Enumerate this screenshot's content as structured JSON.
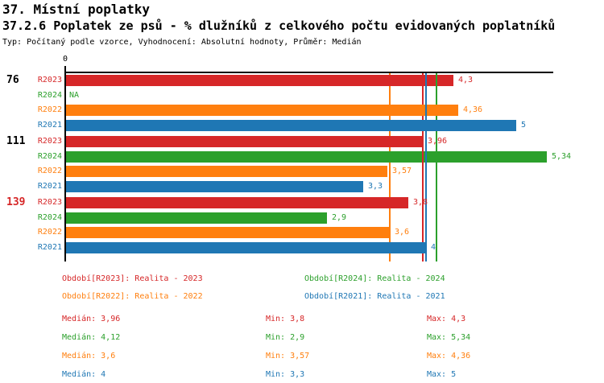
{
  "header": {
    "title": "37. Místní poplatky",
    "subtitle": "37.2.6 Poplatek ze psů - % dlužníků z celkového počtu evidovaných poplatníků",
    "meta": "Typ: Počítaný podle vzorce, Vyhodnocení: Absolutní hodnoty, Průměr: Medián"
  },
  "colors": {
    "R2023": "#d62728",
    "R2024": "#2ca02c",
    "R2022": "#ff7f0e",
    "R2021": "#1f77b4",
    "axis": "#000000",
    "group_label_highlight": "#d62728"
  },
  "chart_data": {
    "type": "bar",
    "orientation": "horizontal",
    "x_axis": {
      "zero_label": "0",
      "min": 0,
      "max": 5.41,
      "grid": false
    },
    "na_label": "NA",
    "series_order": [
      "R2023",
      "R2024",
      "R2022",
      "R2021"
    ],
    "medians": {
      "R2023": 3.96,
      "R2024": 4.12,
      "R2022": 3.6,
      "R2021": 4
    },
    "groups": [
      {
        "label": "76",
        "label_color": "#000000",
        "bars": [
          {
            "series": "R2023",
            "value": 4.3,
            "value_label": "4,3"
          },
          {
            "series": "R2024",
            "value": null,
            "value_label": "NA"
          },
          {
            "series": "R2022",
            "value": 4.36,
            "value_label": "4,36"
          },
          {
            "series": "R2021",
            "value": 5,
            "value_label": "5"
          }
        ]
      },
      {
        "label": "111",
        "label_color": "#000000",
        "bars": [
          {
            "series": "R2023",
            "value": 3.96,
            "value_label": "3,96"
          },
          {
            "series": "R2024",
            "value": 5.34,
            "value_label": "5,34"
          },
          {
            "series": "R2022",
            "value": 3.57,
            "value_label": "3,57"
          },
          {
            "series": "R2021",
            "value": 3.3,
            "value_label": "3,3"
          }
        ]
      },
      {
        "label": "139",
        "label_color": "#d62728",
        "bars": [
          {
            "series": "R2023",
            "value": 3.8,
            "value_label": "3,8"
          },
          {
            "series": "R2024",
            "value": 2.9,
            "value_label": "2,9"
          },
          {
            "series": "R2022",
            "value": 3.6,
            "value_label": "3,6"
          },
          {
            "series": "R2021",
            "value": 4,
            "value_label": "4"
          }
        ]
      }
    ]
  },
  "legend": {
    "items": [
      {
        "series": "R2023",
        "label": "Období[R2023]: Realita - 2023"
      },
      {
        "series": "R2024",
        "label": "Období[R2024]: Realita - 2024"
      },
      {
        "series": "R2022",
        "label": "Období[R2022]: Realita - 2022"
      },
      {
        "series": "R2021",
        "label": "Období[R2021]: Realita - 2021"
      }
    ]
  },
  "stats": {
    "rows": [
      {
        "series": "R2023",
        "median": "Medián: 3,96",
        "min": "Min: 3,8",
        "max": "Max: 4,3"
      },
      {
        "series": "R2024",
        "median": "Medián: 4,12",
        "min": "Min: 2,9",
        "max": "Max: 5,34"
      },
      {
        "series": "R2022",
        "median": "Medián: 3,6",
        "min": "Min: 3,57",
        "max": "Max: 4,36"
      },
      {
        "series": "R2021",
        "median": "Medián: 4",
        "min": "Min: 3,3",
        "max": "Max: 5"
      }
    ]
  }
}
